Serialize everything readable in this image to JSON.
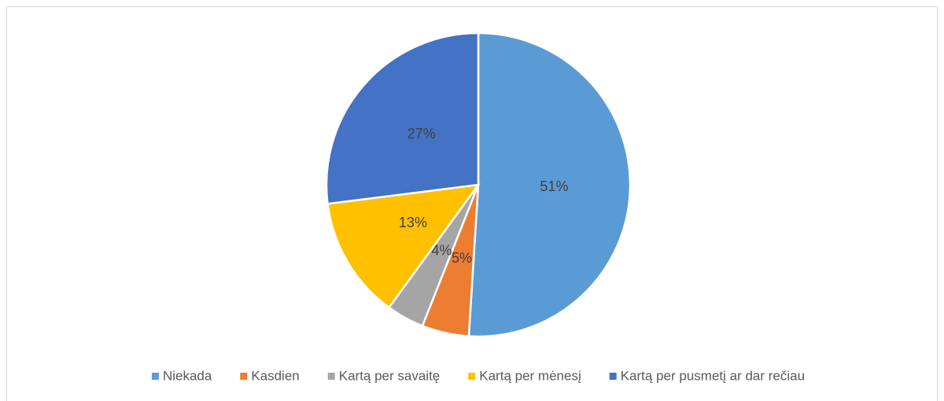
{
  "chart_data": {
    "type": "pie",
    "categories": [
      "Niekada",
      "Kasdien",
      "Kartą per savaitę",
      "Kartą per mėnesį",
      "Kartą per pusmetį ar dar rečiau"
    ],
    "values": [
      51,
      5,
      4,
      13,
      27
    ],
    "value_labels": [
      "51%",
      "5%",
      "4%",
      "13%",
      "27%"
    ],
    "colors": [
      "#5b9bd5",
      "#ed7d31",
      "#a5a5a5",
      "#ffc000",
      "#4472c4"
    ],
    "legend": "bottom"
  }
}
